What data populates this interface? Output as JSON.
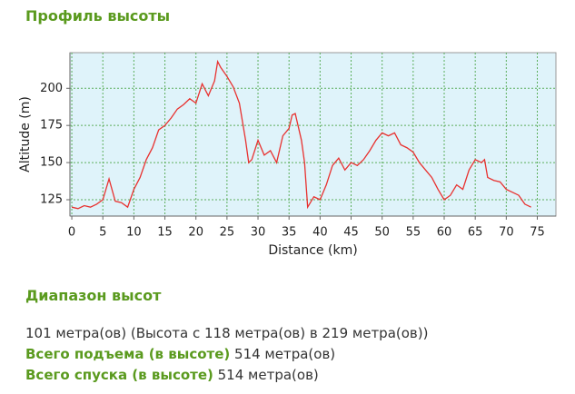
{
  "header": {
    "title": "Профиль высоты"
  },
  "chart_data": {
    "type": "line",
    "xlabel": "Distance (km)",
    "ylabel": "Altitude (m)",
    "x": [
      0,
      1,
      2,
      3,
      4,
      5,
      6,
      7,
      8,
      9,
      10,
      11,
      12,
      13,
      14,
      15,
      16,
      17,
      18,
      19,
      20,
      21,
      22,
      23,
      23.5,
      24,
      25,
      26,
      27,
      28,
      28.5,
      29,
      30,
      31,
      32,
      33,
      34,
      35,
      35.5,
      36,
      37,
      37.5,
      38,
      39,
      40,
      41,
      42,
      43,
      44,
      45,
      46,
      47,
      48,
      49,
      50,
      51,
      52,
      53,
      54,
      55,
      56,
      57,
      58,
      59,
      60,
      61,
      62,
      63,
      64,
      65,
      66,
      66.5,
      67,
      68,
      69,
      70,
      71,
      72,
      73,
      74
    ],
    "series": [
      {
        "name": "Altitude",
        "color": "#e8312f",
        "values": [
          120,
          119,
          121,
          120,
          122,
          125,
          139,
          124,
          123,
          120,
          132,
          140,
          152,
          160,
          172,
          175,
          180,
          186,
          189,
          193,
          190,
          203,
          195,
          205,
          218,
          214,
          208,
          201,
          190,
          165,
          150,
          152,
          165,
          155,
          158,
          150,
          168,
          173,
          182,
          183,
          165,
          150,
          120,
          127,
          125,
          135,
          148,
          153,
          145,
          150,
          148,
          152,
          158,
          165,
          170,
          168,
          170,
          162,
          160,
          157,
          150,
          145,
          140,
          132,
          125,
          128,
          135,
          132,
          145,
          152,
          150,
          152,
          140,
          138,
          137,
          132,
          130,
          128,
          122,
          120
        ]
      }
    ],
    "xlim": [
      -0.3,
      78
    ],
    "ylim": [
      114,
      224
    ],
    "xticks": [
      0,
      5,
      10,
      15,
      20,
      25,
      30,
      35,
      40,
      45,
      50,
      55,
      60,
      65,
      70,
      75
    ],
    "yticks": [
      125,
      150,
      175,
      200
    ],
    "grid": true,
    "background": "#dff3fa"
  },
  "range": {
    "title": "Диапазон высот",
    "text": "101 метра(ов) (Высота с 118 метра(ов) в 219 метра(ов))"
  },
  "stats": {
    "ascent": {
      "label": "Всего подъема (в высоте)",
      "value": "514 метра(ов)"
    },
    "descent": {
      "label": "Всего спуска (в высоте)",
      "value": "514 метра(ов)"
    }
  }
}
